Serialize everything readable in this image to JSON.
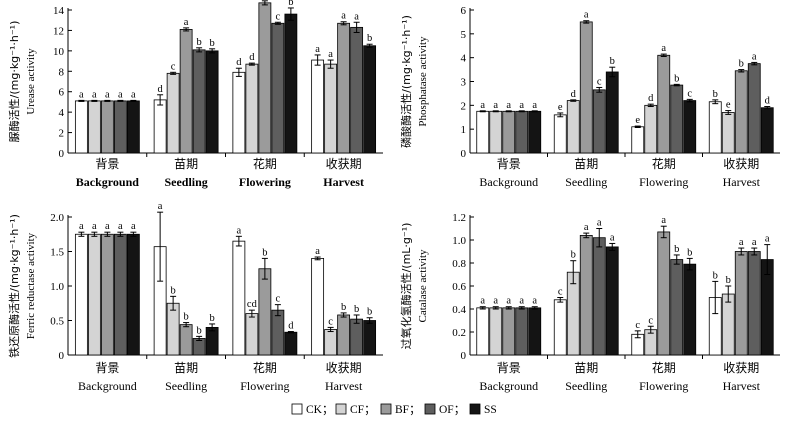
{
  "legend": [
    {
      "key": "CK",
      "label": "CK；"
    },
    {
      "key": "CF",
      "label": "CF；"
    },
    {
      "key": "BF",
      "label": "BF；"
    },
    {
      "key": "OF",
      "label": "OF；"
    },
    {
      "key": "SS",
      "label": "SS"
    }
  ],
  "colors": {
    "CK": "#ffffff",
    "CF": "#d4d4d4",
    "BF": "#9b9b9b",
    "OF": "#5e5e5e",
    "SS": "#141414",
    "axis": "#000000"
  },
  "chart_data": [
    {
      "id": "urease",
      "type": "bar",
      "ylabel_cn": "脲酶活性/(mg·kg⁻¹·h⁻¹)",
      "ylabel_en": "Urease activity",
      "ylim": [
        0,
        14
      ],
      "yticks": [
        0,
        2,
        4,
        6,
        8,
        10,
        12,
        14
      ],
      "tick_labels": [
        "0",
        "2",
        "4",
        "6",
        "8",
        "10",
        "12",
        "14"
      ],
      "categories_cn": [
        "背景",
        "苗期",
        "花期",
        "收获期"
      ],
      "categories_en": [
        "Background",
        "Seedling",
        "Flowering",
        "Harvest"
      ],
      "en_bold": true,
      "series": [
        {
          "name": "CK",
          "values": [
            5.1,
            5.2,
            7.9,
            9.1
          ],
          "errors": [
            0.05,
            0.5,
            0.4,
            0.5
          ],
          "sig": [
            "a",
            "d",
            "d",
            "a"
          ]
        },
        {
          "name": "CF",
          "values": [
            5.1,
            7.8,
            8.7,
            8.7
          ],
          "errors": [
            0.05,
            0.1,
            0.1,
            0.4
          ],
          "sig": [
            "a",
            "c",
            "d",
            "a"
          ]
        },
        {
          "name": "BF",
          "values": [
            5.1,
            12.1,
            14.7,
            12.7
          ],
          "errors": [
            0.05,
            0.15,
            0.2,
            0.15
          ],
          "sig": [
            "a",
            "a",
            "a",
            "a"
          ]
        },
        {
          "name": "OF",
          "values": [
            5.1,
            10.1,
            12.7,
            12.3
          ],
          "errors": [
            0.05,
            0.2,
            0.1,
            0.5
          ],
          "sig": [
            "a",
            "b",
            "c",
            "a"
          ]
        },
        {
          "name": "SS",
          "values": [
            5.1,
            10.0,
            13.6,
            10.5
          ],
          "errors": [
            0.05,
            0.2,
            0.6,
            0.15
          ],
          "sig": [
            "a",
            "b",
            "b",
            "b"
          ]
        }
      ]
    },
    {
      "id": "phosphatase",
      "type": "bar",
      "ylabel_cn": "磷酸酶活性/(mg·kg⁻¹·h⁻¹)",
      "ylabel_en": "Phosphatase activity",
      "ylim": [
        0,
        6
      ],
      "yticks": [
        0,
        1,
        2,
        3,
        4,
        5,
        6
      ],
      "tick_labels": [
        "0",
        "1",
        "2",
        "3",
        "4",
        "5",
        "6"
      ],
      "categories_cn": [
        "背景",
        "苗期",
        "花期",
        "收获期"
      ],
      "categories_en": [
        "Background",
        "Seedling",
        "Flowering",
        "Harvest"
      ],
      "en_bold": false,
      "series": [
        {
          "name": "CK",
          "values": [
            1.75,
            1.6,
            1.1,
            2.15
          ],
          "errors": [
            0.02,
            0.08,
            0.03,
            0.08
          ],
          "sig": [
            "a",
            "e",
            "e",
            "b"
          ]
        },
        {
          "name": "CF",
          "values": [
            1.75,
            2.2,
            2.0,
            1.7
          ],
          "errors": [
            0.02,
            0.03,
            0.05,
            0.08
          ],
          "sig": [
            "a",
            "d",
            "d",
            "e"
          ]
        },
        {
          "name": "BF",
          "values": [
            1.75,
            5.5,
            4.1,
            3.45
          ],
          "errors": [
            0.02,
            0.05,
            0.05,
            0.05
          ],
          "sig": [
            "a",
            "a",
            "a",
            "b"
          ]
        },
        {
          "name": "OF",
          "values": [
            1.75,
            2.65,
            2.85,
            3.75
          ],
          "errors": [
            0.02,
            0.1,
            0.03,
            0.05
          ],
          "sig": [
            "a",
            "c",
            "b",
            "a"
          ]
        },
        {
          "name": "SS",
          "values": [
            1.75,
            3.4,
            2.2,
            1.9
          ],
          "errors": [
            0.02,
            0.2,
            0.05,
            0.05
          ],
          "sig": [
            "a",
            "b",
            "c",
            "d"
          ]
        }
      ]
    },
    {
      "id": "ferric",
      "type": "bar",
      "ylabel_cn": "铁还原酶活性/(mg·kg⁻¹·h⁻¹)",
      "ylabel_en": "Ferric reductase activity",
      "ylim": [
        0,
        2.0
      ],
      "yticks": [
        0,
        0.5,
        1.0,
        1.5,
        2.0
      ],
      "tick_labels": [
        "0",
        "0.5",
        "1.0",
        "1.5",
        "2.0"
      ],
      "categories_cn": [
        "背景",
        "苗期",
        "花期",
        "收获期"
      ],
      "categories_en": [
        "Background",
        "Seedling",
        "Flowering",
        "Harvest"
      ],
      "en_bold": false,
      "series": [
        {
          "name": "CK",
          "values": [
            1.75,
            1.57,
            1.65,
            1.4
          ],
          "errors": [
            0.03,
            0.5,
            0.07,
            0.02
          ],
          "sig": [
            "a",
            "a",
            "a",
            "a"
          ]
        },
        {
          "name": "CF",
          "values": [
            1.75,
            0.75,
            0.6,
            0.37
          ],
          "errors": [
            0.03,
            0.1,
            0.05,
            0.03
          ],
          "sig": [
            "a",
            "b",
            "cd",
            "c"
          ]
        },
        {
          "name": "BF",
          "values": [
            1.75,
            0.44,
            1.25,
            0.58
          ],
          "errors": [
            0.03,
            0.03,
            0.15,
            0.03
          ],
          "sig": [
            "a",
            "b",
            "b",
            "b"
          ]
        },
        {
          "name": "OF",
          "values": [
            1.75,
            0.24,
            0.65,
            0.52
          ],
          "errors": [
            0.03,
            0.03,
            0.08,
            0.06
          ],
          "sig": [
            "a",
            "b",
            "c",
            "b"
          ]
        },
        {
          "name": "SS",
          "values": [
            1.75,
            0.4,
            0.33,
            0.5
          ],
          "errors": [
            0.03,
            0.05,
            0.01,
            0.04
          ],
          "sig": [
            "a",
            "b",
            "d",
            "b"
          ]
        }
      ]
    },
    {
      "id": "catalase",
      "type": "bar",
      "ylabel_cn": "过氧化氢酶活性/(mL·g⁻¹)",
      "ylabel_en": "Catalase activity",
      "ylim": [
        0,
        1.2
      ],
      "yticks": [
        0,
        0.2,
        0.4,
        0.6,
        0.8,
        1.0,
        1.2
      ],
      "tick_labels": [
        "0",
        "0.2",
        "0.4",
        "0.6",
        "0.8",
        "1.0",
        "1.2"
      ],
      "categories_cn": [
        "背景",
        "苗期",
        "花期",
        "收获期"
      ],
      "categories_en": [
        "Background",
        "Seedling",
        "Flowering",
        "Harvest"
      ],
      "en_bold": false,
      "series": [
        {
          "name": "CK",
          "values": [
            0.41,
            0.48,
            0.18,
            0.5
          ],
          "errors": [
            0.01,
            0.02,
            0.03,
            0.14
          ],
          "sig": [
            "a",
            "c",
            "c",
            "b"
          ]
        },
        {
          "name": "CF",
          "values": [
            0.41,
            0.72,
            0.22,
            0.53
          ],
          "errors": [
            0.01,
            0.1,
            0.03,
            0.07
          ],
          "sig": [
            "a",
            "b",
            "c",
            "b"
          ]
        },
        {
          "name": "BF",
          "values": [
            0.41,
            1.04,
            1.07,
            0.9
          ],
          "errors": [
            0.01,
            0.02,
            0.05,
            0.03
          ],
          "sig": [
            "a",
            "a",
            "a",
            "a"
          ]
        },
        {
          "name": "OF",
          "values": [
            0.41,
            1.02,
            0.83,
            0.9
          ],
          "errors": [
            0.01,
            0.08,
            0.04,
            0.03
          ],
          "sig": [
            "a",
            "a",
            "b",
            "a"
          ]
        },
        {
          "name": "SS",
          "values": [
            0.41,
            0.94,
            0.79,
            0.83
          ],
          "errors": [
            0.01,
            0.03,
            0.05,
            0.13
          ],
          "sig": [
            "a",
            "a",
            "b",
            "a"
          ]
        }
      ]
    }
  ]
}
